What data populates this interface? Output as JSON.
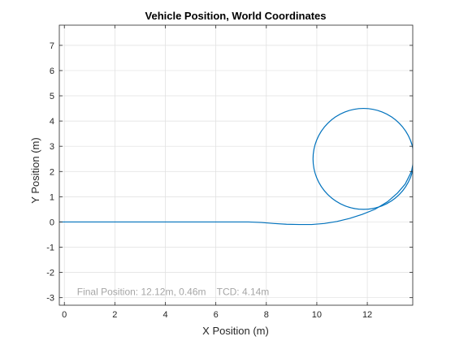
{
  "chart_data": {
    "type": "line",
    "title": "Vehicle Position, World Coordinates",
    "xlabel": "X Position (m)",
    "ylabel": "Y Position (m)",
    "xlim": [
      -0.2,
      13.8
    ],
    "ylim": [
      -3.3,
      7.8
    ],
    "xticks": [
      0,
      2,
      4,
      6,
      8,
      10,
      12
    ],
    "yticks": [
      -3,
      -2,
      -1,
      0,
      1,
      2,
      3,
      4,
      5,
      6,
      7
    ],
    "grid": true,
    "line_color": "#0072bd",
    "series": [
      {
        "x": [
          -0.2,
          1,
          2,
          3,
          4,
          5,
          6,
          7,
          7.3,
          7.8,
          8.3,
          8.8,
          9.3,
          9.8,
          10.3,
          10.8,
          11.3,
          11.8,
          12.3,
          12.8,
          13.2,
          13.5,
          13.75,
          13.85
        ],
        "y": [
          0,
          0,
          0,
          0,
          0,
          0,
          0,
          0,
          0,
          -0.02,
          -0.06,
          -0.09,
          -0.1,
          -0.1,
          -0.06,
          0.02,
          0.14,
          0.3,
          0.5,
          0.8,
          1.15,
          1.5,
          2.0,
          2.5
        ]
      }
    ],
    "circle": {
      "cx": 11.85,
      "cy": 2.5,
      "r": 2.0
    },
    "annotation": "Final Position: 12.12m, 0.46m    TCD: 4.14m",
    "annotation_pos": {
      "x": 0.5,
      "y": -2.9
    }
  }
}
